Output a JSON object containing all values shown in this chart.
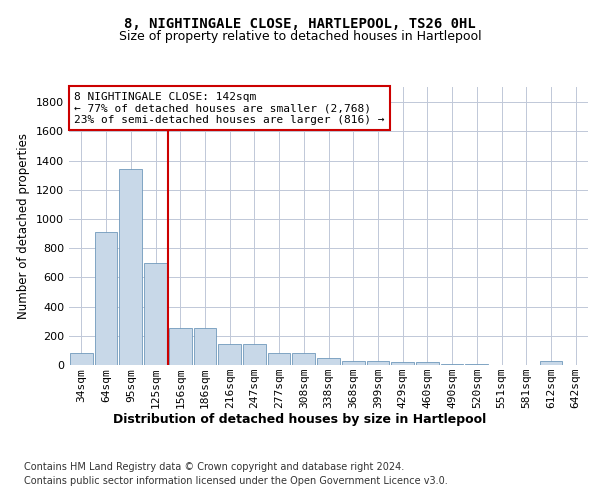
{
  "title1": "8, NIGHTINGALE CLOSE, HARTLEPOOL, TS26 0HL",
  "title2": "Size of property relative to detached houses in Hartlepool",
  "xlabel": "Distribution of detached houses by size in Hartlepool",
  "ylabel": "Number of detached properties",
  "categories": [
    "34sqm",
    "64sqm",
    "95sqm",
    "125sqm",
    "156sqm",
    "186sqm",
    "216sqm",
    "247sqm",
    "277sqm",
    "308sqm",
    "338sqm",
    "368sqm",
    "399sqm",
    "429sqm",
    "460sqm",
    "490sqm",
    "520sqm",
    "551sqm",
    "581sqm",
    "612sqm",
    "642sqm"
  ],
  "values": [
    80,
    910,
    1340,
    700,
    250,
    250,
    145,
    145,
    80,
    80,
    50,
    30,
    30,
    20,
    20,
    5,
    5,
    0,
    0,
    25,
    0
  ],
  "bar_color": "#c8d8e8",
  "bar_edge_color": "#7099bb",
  "vline_x": 3.5,
  "vline_color": "#cc0000",
  "annotation_text": "8 NIGHTINGALE CLOSE: 142sqm\n← 77% of detached houses are smaller (2,768)\n23% of semi-detached houses are larger (816) →",
  "annotation_box_color": "#ffffff",
  "annotation_box_edge": "#cc0000",
  "ylim": [
    0,
    1900
  ],
  "yticks": [
    0,
    200,
    400,
    600,
    800,
    1000,
    1200,
    1400,
    1600,
    1800
  ],
  "footer1": "Contains HM Land Registry data © Crown copyright and database right 2024.",
  "footer2": "Contains public sector information licensed under the Open Government Licence v3.0.",
  "bg_color": "#ffffff",
  "grid_color": "#c0c8d8",
  "title1_fontsize": 10,
  "title2_fontsize": 9,
  "xlabel_fontsize": 9,
  "ylabel_fontsize": 8.5,
  "tick_fontsize": 8,
  "annotation_fontsize": 8,
  "footer_fontsize": 7
}
